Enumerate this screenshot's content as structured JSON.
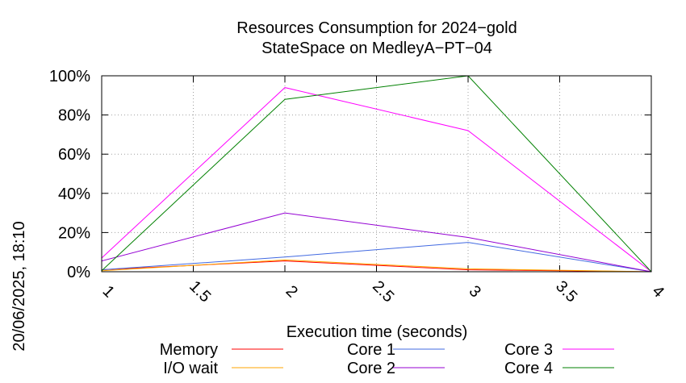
{
  "chart_data": {
    "type": "line",
    "title_line1": "Resources Consumption for 2024−gold",
    "title_line2": "StateSpace on MedleyA−PT−04",
    "xlabel": "Execution time (seconds)",
    "ylabel": "",
    "side_label": "20/06/2025, 18:10",
    "xlim": [
      1,
      4
    ],
    "ylim": [
      0,
      100
    ],
    "x_ticks": [
      1,
      1.5,
      2,
      2.5,
      3,
      3.5,
      4
    ],
    "x_tick_labels": [
      "1",
      "1.5",
      "2",
      "2.5",
      "3",
      "3.5",
      "4"
    ],
    "y_ticks": [
      0,
      20,
      40,
      60,
      80,
      100
    ],
    "y_tick_labels": [
      "0%",
      "20%",
      "40%",
      "60%",
      "80%",
      "100%"
    ],
    "grid": true,
    "legend_position": "bottom",
    "x": [
      1,
      2,
      3,
      4
    ],
    "series": [
      {
        "name": "Memory",
        "color": "#ff0000",
        "values": [
          1,
          5.5,
          1,
          0
        ]
      },
      {
        "name": "I/O wait",
        "color": "#ffa500",
        "values": [
          0.5,
          6,
          1.5,
          0
        ]
      },
      {
        "name": "Core 1",
        "color": "#4169e1",
        "values": [
          1,
          7.5,
          15,
          0
        ]
      },
      {
        "name": "Core 2",
        "color": "#9400d3",
        "values": [
          5.5,
          30,
          17.5,
          0
        ]
      },
      {
        "name": "Core 3",
        "color": "#ff00ff",
        "values": [
          7,
          94,
          72,
          0
        ]
      },
      {
        "name": "Core 4",
        "color": "#008000",
        "values": [
          0.5,
          88,
          100,
          0
        ]
      }
    ]
  }
}
